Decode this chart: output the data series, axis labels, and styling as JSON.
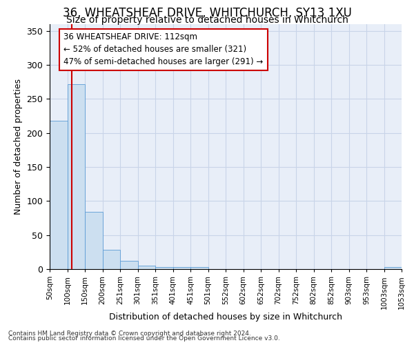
{
  "title": "36, WHEATSHEAF DRIVE, WHITCHURCH, SY13 1XU",
  "subtitle": "Size of property relative to detached houses in Whitchurch",
  "xlabel": "Distribution of detached houses by size in Whitchurch",
  "ylabel": "Number of detached properties",
  "bins": [
    50,
    100,
    150,
    200,
    251,
    301,
    351,
    401,
    451,
    501,
    552,
    602,
    652,
    702,
    752,
    802,
    852,
    903,
    953,
    1003,
    1053
  ],
  "counts": [
    218,
    272,
    84,
    28,
    12,
    5,
    3,
    3,
    3,
    0,
    0,
    0,
    0,
    0,
    0,
    0,
    0,
    0,
    0,
    3,
    0
  ],
  "bar_color": "#ccdff0",
  "bar_edge_color": "#5b9bd5",
  "grid_color": "#c8d4e8",
  "background_color": "#e8eef8",
  "property_size": 112,
  "annotation_line1": "36 WHEATSHEAF DRIVE: 112sqm",
  "annotation_line2": "← 52% of detached houses are smaller (321)",
  "annotation_line3": "47% of semi-detached houses are larger (291) →",
  "annotation_box_color": "white",
  "annotation_border_color": "#cc0000",
  "vline_color": "#cc0000",
  "ylim": [
    0,
    360
  ],
  "yticks": [
    0,
    50,
    100,
    150,
    200,
    250,
    300,
    350
  ],
  "footer1": "Contains HM Land Registry data © Crown copyright and database right 2024.",
  "footer2": "Contains public sector information licensed under the Open Government Licence v3.0.",
  "title_fontsize": 12,
  "subtitle_fontsize": 10,
  "tick_labels": [
    "50sqm",
    "100sqm",
    "150sqm",
    "200sqm",
    "251sqm",
    "301sqm",
    "351sqm",
    "401sqm",
    "451sqm",
    "501sqm",
    "552sqm",
    "602sqm",
    "652sqm",
    "702sqm",
    "752sqm",
    "802sqm",
    "852sqm",
    "903sqm",
    "953sqm",
    "1003sqm",
    "1053sqm"
  ],
  "n_bins": 21
}
